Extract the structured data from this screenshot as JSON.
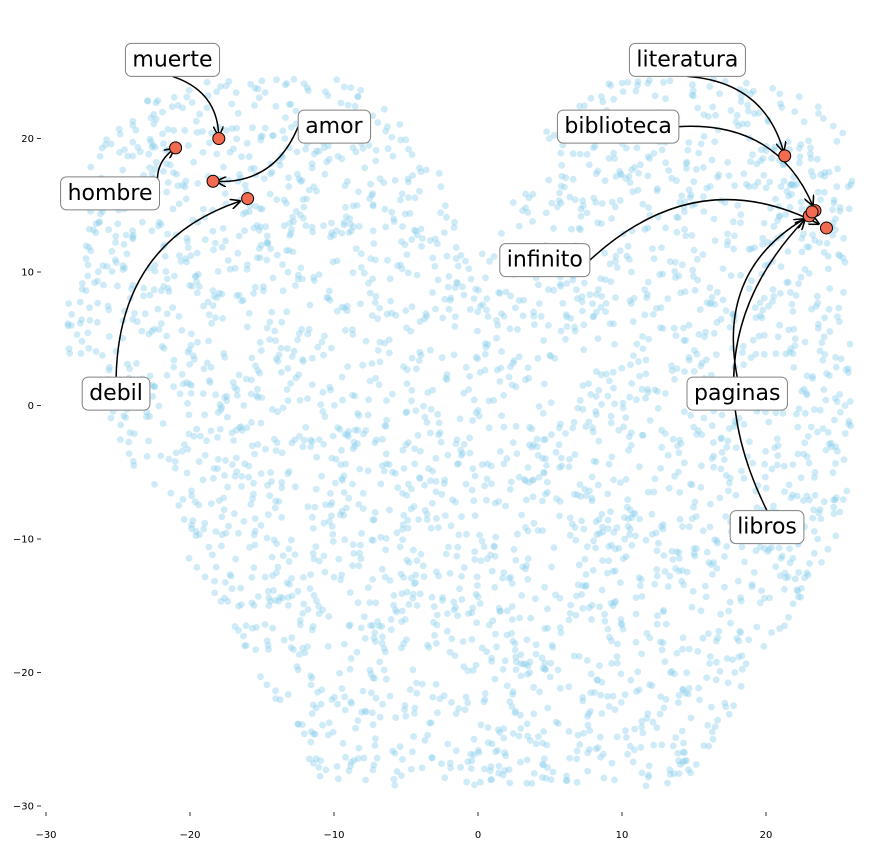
{
  "chart_data": {
    "type": "scatter",
    "title": "",
    "xlabel": "",
    "ylabel": "",
    "xlim": [
      -30,
      27
    ],
    "ylim": [
      -30,
      27
    ],
    "grid": false,
    "x_ticks": [
      -30,
      -20,
      -10,
      0,
      10,
      20
    ],
    "y_ticks": [
      -30,
      -20,
      -10,
      0,
      10,
      20
    ],
    "x_tick_labels": [
      "−30",
      "−20",
      "−10",
      "0",
      "10",
      "20"
    ],
    "y_tick_labels": [
      "−30",
      "−20",
      "−10",
      "0",
      "10",
      "20"
    ],
    "background_color": "#87ceeb",
    "highlight_color": "#f26a4f",
    "background_point_count": 3000,
    "highlighted": [
      {
        "word": "muerte",
        "x": -18.0,
        "y": 20.0,
        "label_x": -24.0,
        "label_y": 26.0
      },
      {
        "word": "amor",
        "x": -18.4,
        "y": 16.8,
        "label_x": -12.0,
        "label_y": 21.0
      },
      {
        "word": "hombre",
        "x": -21.0,
        "y": 19.3,
        "label_x": -28.5,
        "label_y": 16.0
      },
      {
        "word": "debil",
        "x": -16.0,
        "y": 15.5,
        "label_x": -27.0,
        "label_y": 1.0
      },
      {
        "word": "literatura",
        "x": 21.3,
        "y": 18.7,
        "label_x": 11.0,
        "label_y": 26.0
      },
      {
        "word": "biblioteca",
        "x": 23.4,
        "y": 14.6,
        "label_x": 6.0,
        "label_y": 21.0
      },
      {
        "word": "infinito",
        "x": 24.2,
        "y": 13.3,
        "label_x": 2.0,
        "label_y": 11.0
      },
      {
        "word": "paginas",
        "x": 23.0,
        "y": 14.2,
        "label_x": 15.0,
        "label_y": 1.0
      },
      {
        "word": "libros",
        "x": 23.2,
        "y": 14.5,
        "label_x": 18.0,
        "label_y": -9.0
      }
    ]
  }
}
